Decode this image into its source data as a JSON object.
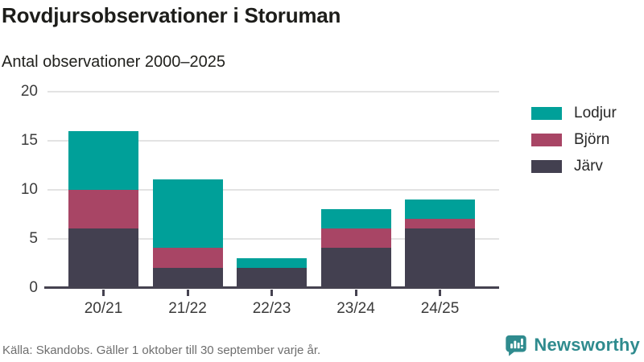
{
  "header": {
    "title": "Rovdjursobservationer i Storuman",
    "subtitle": "Antal observationer 2000–2025"
  },
  "chart_data": {
    "type": "bar",
    "stacked": true,
    "categories": [
      "20/21",
      "21/22",
      "22/23",
      "23/24",
      "24/25"
    ],
    "series": [
      {
        "name": "Järv",
        "color": "#434050",
        "values": [
          6,
          2,
          2,
          4,
          6
        ]
      },
      {
        "name": "Björn",
        "color": "#a84565",
        "values": [
          4,
          2,
          0,
          2,
          1
        ]
      },
      {
        "name": "Lodjur",
        "color": "#00a099",
        "values": [
          6,
          7,
          1,
          2,
          2
        ]
      }
    ],
    "stack_totals": [
      16,
      11,
      3,
      8,
      9
    ],
    "ylim": [
      0,
      20
    ],
    "yticks": [
      0,
      5,
      10,
      15,
      20
    ],
    "grid": true,
    "legend_position": "right",
    "legend_order": [
      "Lodjur",
      "Björn",
      "Järv"
    ]
  },
  "footer": {
    "source": "Källa: Skandobs. Gäller 1 oktober till 30 september varje år.",
    "brand": "Newsworthy"
  },
  "colors": {
    "gridline": "#e3e3e3",
    "axis": "#454250",
    "brand_teal": "#2f8b8e"
  }
}
